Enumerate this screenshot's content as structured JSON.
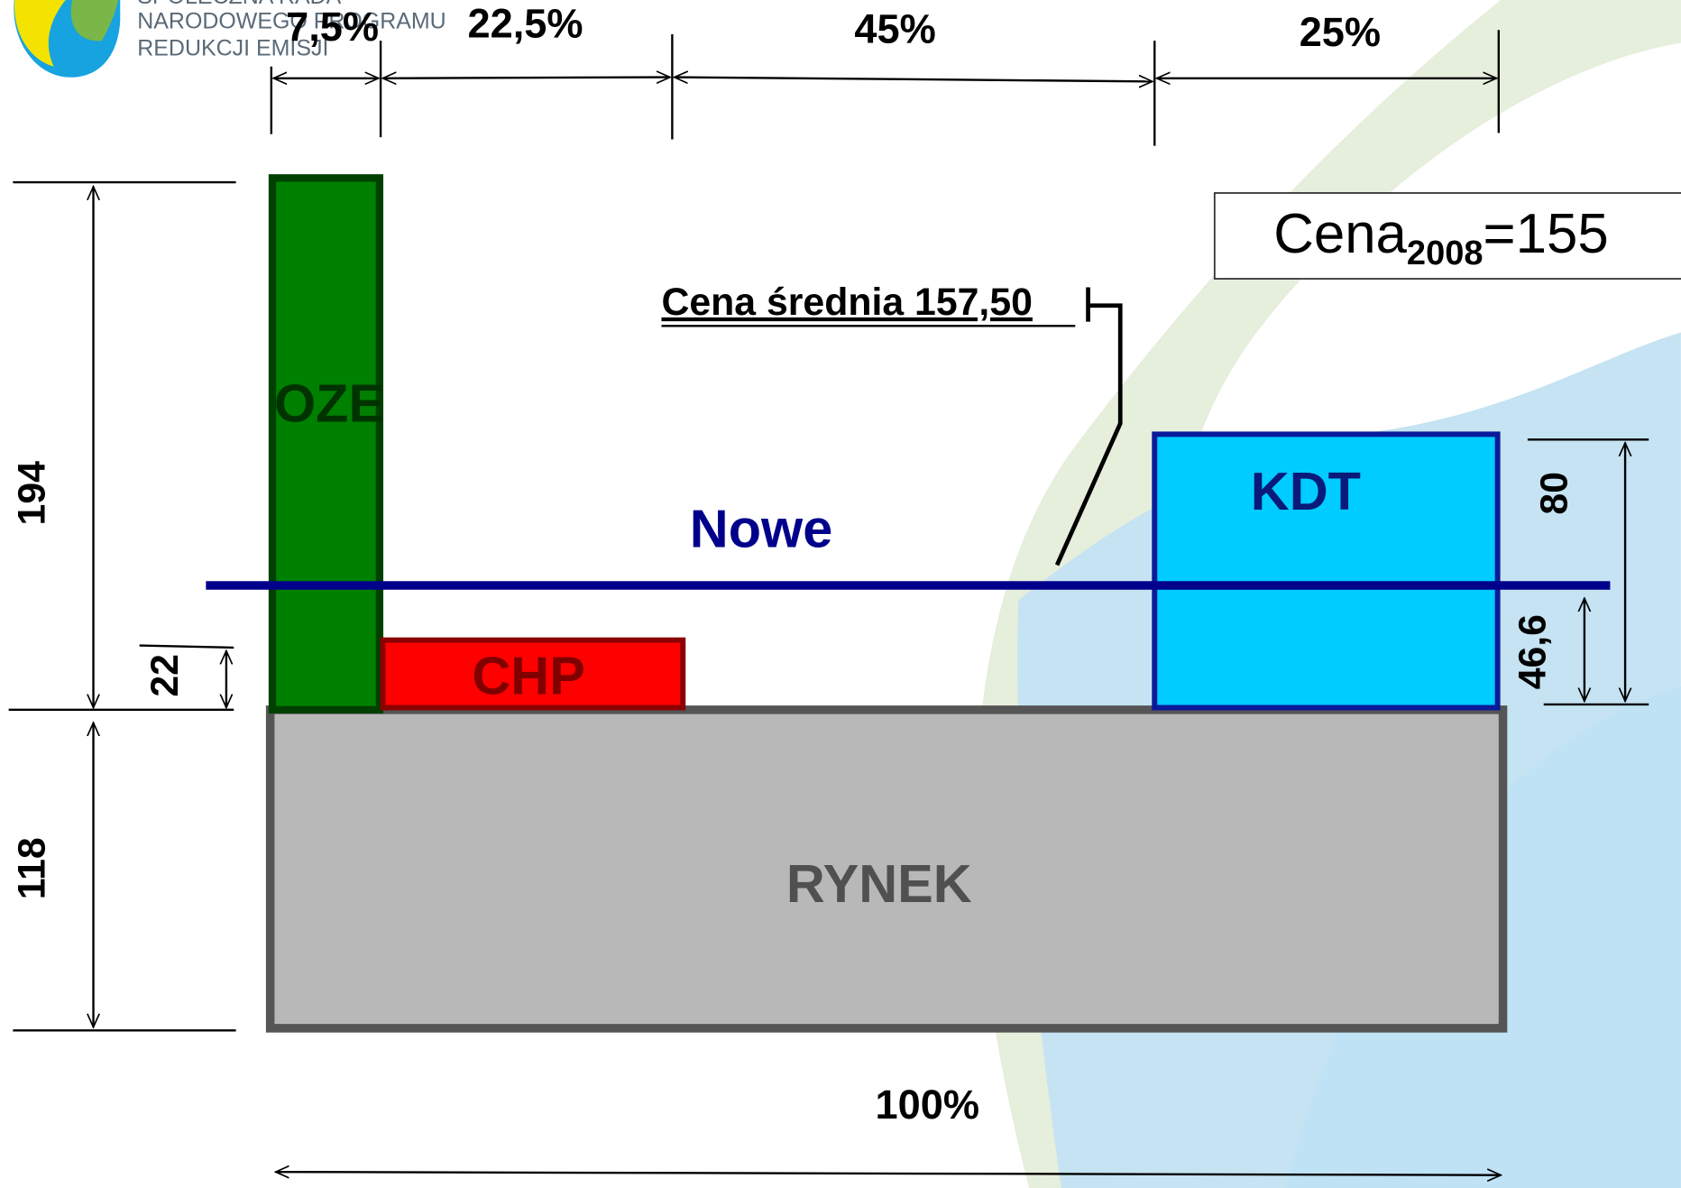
{
  "logo": {
    "lines": [
      "SPOŁECZNA RADA",
      "NARODOWEGO PROGRAMU",
      "REDUKCJI EMISJI"
    ]
  },
  "top_dimensions": [
    "7,5%",
    "22,5%",
    "45%",
    "25%"
  ],
  "bottom_dimension": "100%",
  "left_dimensions": [
    "194",
    "22",
    "118"
  ],
  "right_dimensions": [
    "80",
    "46,6"
  ],
  "blocks": {
    "oze": "OZE",
    "chp": "CHP",
    "kdt": "KDT",
    "rynek": "RYNEK"
  },
  "new_line_label": "Nowe",
  "average_price": "Cena średnia 157,50",
  "price_box": {
    "label": "Cena",
    "subscript": "2008",
    "value": "=155"
  }
}
